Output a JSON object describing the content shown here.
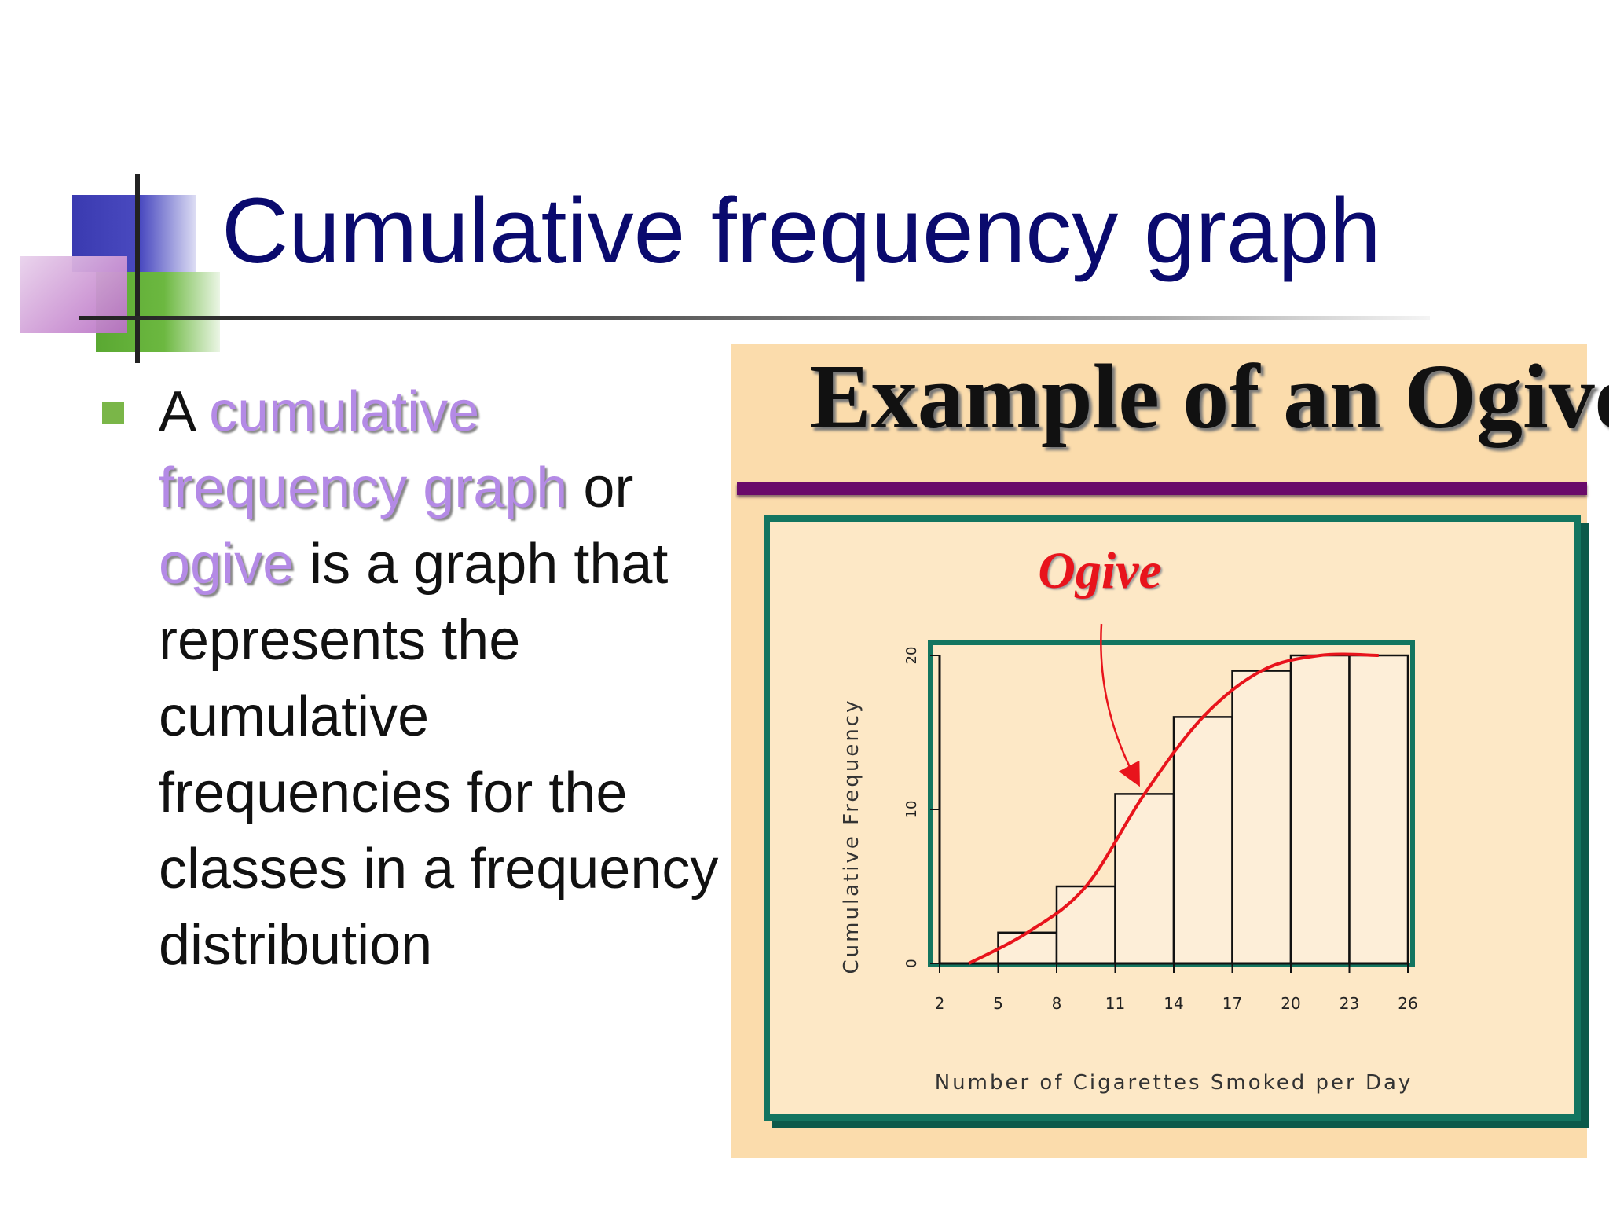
{
  "slide": {
    "title": "Cumulative frequency graph",
    "bullet": {
      "text_a": "A ",
      "term1": "cumulative frequency graph",
      "text_or": " or ",
      "term2": "ogive",
      "text_rest": " is a graph that represents the cumulative frequencies for the classes in a frequency distribution"
    }
  },
  "colors": {
    "title": "#0a0a6e",
    "highlight": "#b48ae6",
    "panel_bg": "#fbdcac",
    "frame": "#137560",
    "rule": "#6a0a6a",
    "curve": "#e8141c",
    "bullet": "#7ab648"
  },
  "chart_data": {
    "type": "line",
    "title": "Example of an Ogive",
    "annotation": "Ogive",
    "xlabel": "Number of Cigarettes Smoked per Day",
    "ylabel": "Cumulative Frequency",
    "x_ticks": [
      2,
      5,
      8,
      11,
      14,
      17,
      20,
      23,
      26
    ],
    "y_ticks": [
      0,
      10,
      20
    ],
    "xlim": [
      2,
      26
    ],
    "ylim": [
      0,
      20
    ],
    "bars": [
      {
        "x0": 2,
        "x1": 5,
        "value": 0
      },
      {
        "x0": 5,
        "x1": 8,
        "value": 2
      },
      {
        "x0": 8,
        "x1": 11,
        "value": 5
      },
      {
        "x0": 11,
        "x1": 14,
        "value": 11
      },
      {
        "x0": 14,
        "x1": 17,
        "value": 16
      },
      {
        "x0": 17,
        "x1": 20,
        "value": 19
      },
      {
        "x0": 20,
        "x1": 23,
        "value": 20
      },
      {
        "x0": 23,
        "x1": 26,
        "value": 20
      }
    ],
    "series": [
      {
        "x": [
          3.5,
          6.5,
          9.5,
          12.5,
          15.5,
          18.5,
          21.5,
          24.5
        ],
        "y": [
          0,
          2,
          5,
          11,
          16,
          19,
          20,
          20
        ]
      }
    ],
    "grid": false,
    "legend": "none"
  }
}
